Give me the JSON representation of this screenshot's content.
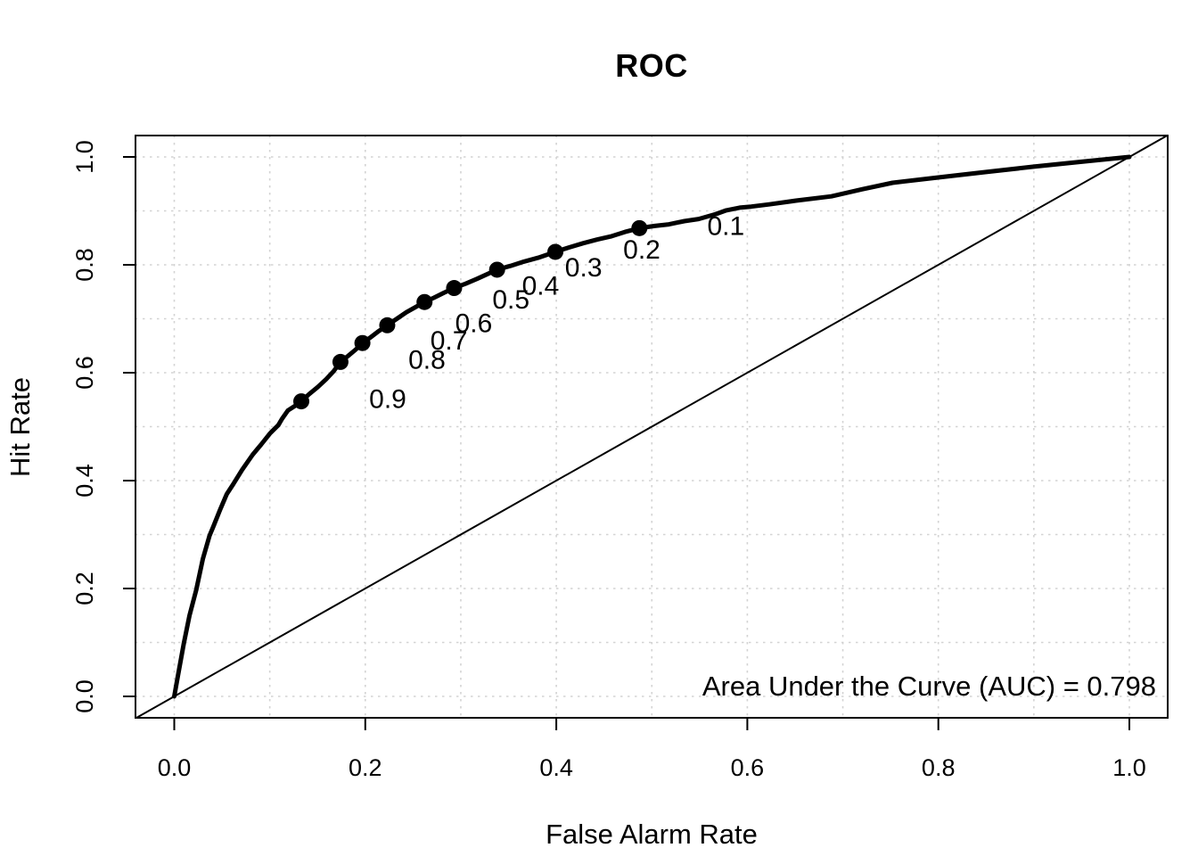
{
  "title": "ROC",
  "x_axis": {
    "label": "False Alarm Rate",
    "tick_labels": [
      "0.0",
      "0.2",
      "0.4",
      "0.6",
      "0.8",
      "1.0"
    ],
    "tick_values": [
      0.0,
      0.2,
      0.4,
      0.6,
      0.8,
      1.0
    ]
  },
  "y_axis": {
    "label": "Hit Rate",
    "tick_labels": [
      "0.0",
      "0.2",
      "0.4",
      "0.6",
      "0.8",
      "1.0"
    ],
    "tick_values": [
      0.0,
      0.2,
      0.4,
      0.6,
      0.8,
      1.0
    ]
  },
  "annotation": {
    "auc_text": "Area Under the Curve (AUC) = 0.798"
  },
  "colors": {
    "curve": "#000000",
    "diagonal": "#000000",
    "grid": "#d3d3d3",
    "text": "#000000",
    "background": "#ffffff"
  },
  "chart_data": {
    "type": "line",
    "title": "ROC",
    "xlabel": "False Alarm Rate",
    "ylabel": "Hit Rate",
    "xlim": [
      -0.04,
      1.04
    ],
    "ylim": [
      -0.04,
      1.04
    ],
    "grid": {
      "on": true,
      "spacing": 0.1,
      "style": "dotted",
      "color": "#d3d3d3"
    },
    "auc": 0.798,
    "series": [
      {
        "name": "ROC curve",
        "style": "thick solid",
        "points": [
          [
            0.0,
            0.0
          ],
          [
            0.004,
            0.04
          ],
          [
            0.01,
            0.098
          ],
          [
            0.016,
            0.15
          ],
          [
            0.023,
            0.197
          ],
          [
            0.03,
            0.255
          ],
          [
            0.037,
            0.298
          ],
          [
            0.041,
            0.315
          ],
          [
            0.048,
            0.346
          ],
          [
            0.055,
            0.375
          ],
          [
            0.062,
            0.394
          ],
          [
            0.071,
            0.42
          ],
          [
            0.082,
            0.448
          ],
          [
            0.091,
            0.467
          ],
          [
            0.1,
            0.487
          ],
          [
            0.109,
            0.503
          ],
          [
            0.113,
            0.515
          ],
          [
            0.119,
            0.53
          ],
          [
            0.126,
            0.538
          ],
          [
            0.133,
            0.547
          ],
          [
            0.141,
            0.56
          ],
          [
            0.15,
            0.573
          ],
          [
            0.159,
            0.588
          ],
          [
            0.167,
            0.603
          ],
          [
            0.174,
            0.62
          ],
          [
            0.182,
            0.631
          ],
          [
            0.19,
            0.643
          ],
          [
            0.197,
            0.655
          ],
          [
            0.205,
            0.665
          ],
          [
            0.214,
            0.677
          ],
          [
            0.223,
            0.688
          ],
          [
            0.233,
            0.7
          ],
          [
            0.243,
            0.712
          ],
          [
            0.253,
            0.722
          ],
          [
            0.262,
            0.731
          ],
          [
            0.272,
            0.739
          ],
          [
            0.282,
            0.748
          ],
          [
            0.293,
            0.757
          ],
          [
            0.305,
            0.765
          ],
          [
            0.317,
            0.774
          ],
          [
            0.328,
            0.783
          ],
          [
            0.338,
            0.791
          ],
          [
            0.352,
            0.798
          ],
          [
            0.366,
            0.806
          ],
          [
            0.381,
            0.813
          ],
          [
            0.399,
            0.824
          ],
          [
            0.413,
            0.832
          ],
          [
            0.428,
            0.84
          ],
          [
            0.443,
            0.847
          ],
          [
            0.458,
            0.853
          ],
          [
            0.472,
            0.861
          ],
          [
            0.487,
            0.868
          ],
          [
            0.503,
            0.872
          ],
          [
            0.518,
            0.875
          ],
          [
            0.534,
            0.881
          ],
          [
            0.549,
            0.885
          ],
          [
            0.567,
            0.894
          ],
          [
            0.578,
            0.901
          ],
          [
            0.592,
            0.906
          ],
          [
            0.604,
            0.908
          ],
          [
            0.623,
            0.912
          ],
          [
            0.651,
            0.919
          ],
          [
            0.688,
            0.927
          ],
          [
            0.72,
            0.94
          ],
          [
            0.752,
            0.952
          ],
          [
            0.8,
            0.962
          ],
          [
            0.85,
            0.972
          ],
          [
            0.9,
            0.982
          ],
          [
            0.95,
            0.991
          ],
          [
            1.0,
            1.0
          ]
        ]
      },
      {
        "name": "chance diagonal",
        "style": "thin solid",
        "points": [
          [
            -0.04,
            -0.04
          ],
          [
            1.04,
            1.04
          ]
        ]
      }
    ],
    "threshold_points": [
      {
        "label": "0.1",
        "x": 0.487,
        "y": 0.868
      },
      {
        "label": "0.2",
        "x": 0.399,
        "y": 0.824
      },
      {
        "label": "0.3",
        "x": 0.338,
        "y": 0.791
      },
      {
        "label": "0.4",
        "x": 0.293,
        "y": 0.757
      },
      {
        "label": "0.5",
        "x": 0.262,
        "y": 0.731
      },
      {
        "label": "0.6",
        "x": 0.223,
        "y": 0.688
      },
      {
        "label": "0.7",
        "x": 0.197,
        "y": 0.655
      },
      {
        "label": "0.8",
        "x": 0.174,
        "y": 0.62
      },
      {
        "label": "0.9",
        "x": 0.133,
        "y": 0.547
      }
    ]
  }
}
